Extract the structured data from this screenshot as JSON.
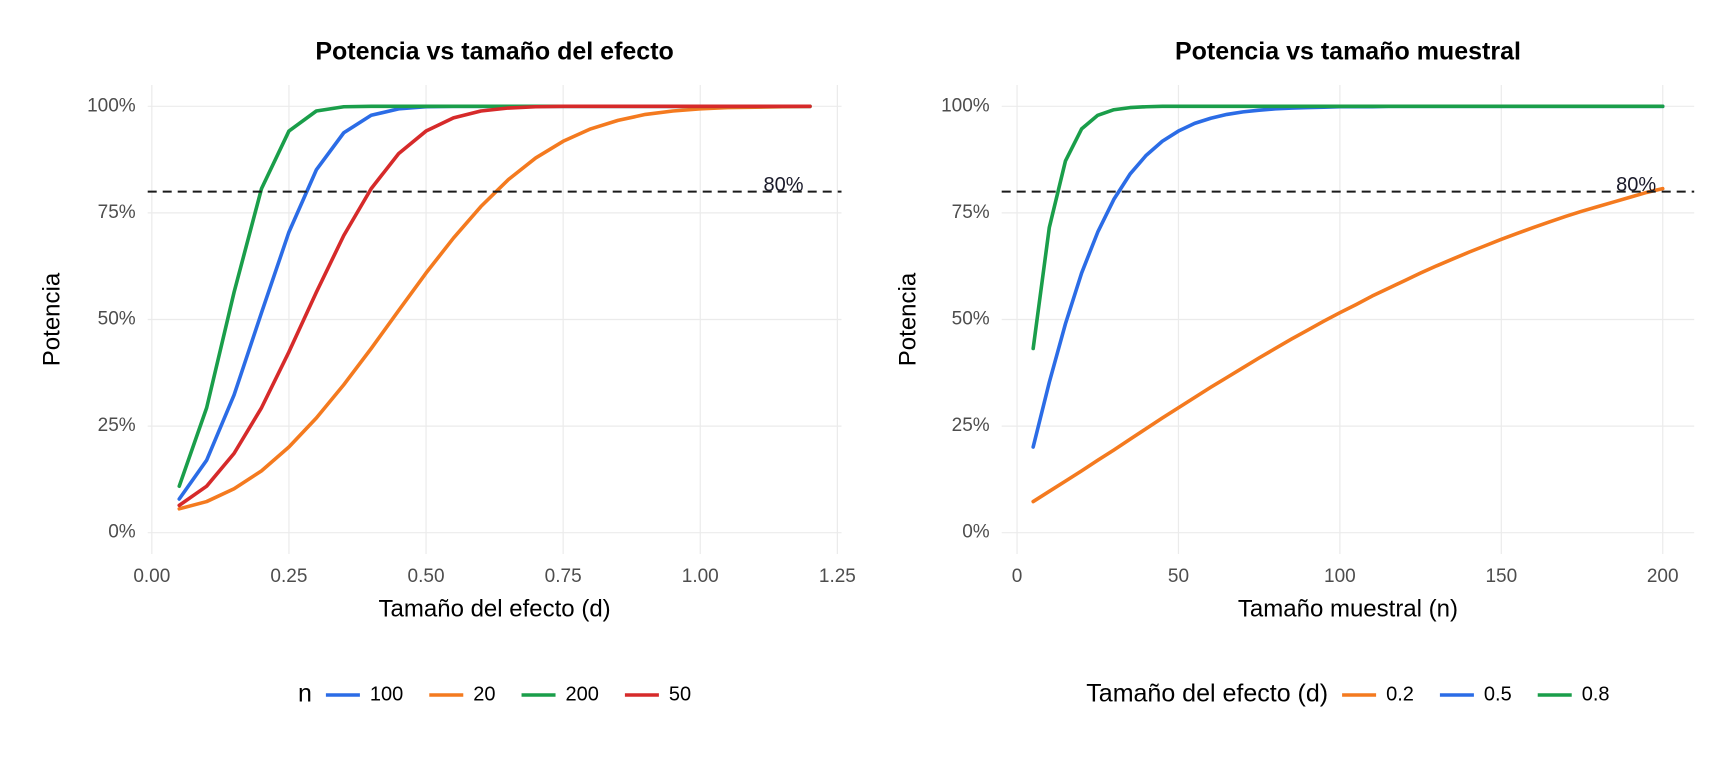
{
  "chart_data": [
    {
      "type": "line",
      "title": "Potencia vs tamaño del efecto",
      "x_label": "Tamaño del efecto (d)",
      "y_label": "Potencia",
      "x": [
        0.05,
        0.1,
        0.15,
        0.2,
        0.25,
        0.3,
        0.35,
        0.4,
        0.45,
        0.5,
        0.55,
        0.6,
        0.65,
        0.7,
        0.75,
        0.8,
        0.85,
        0.9,
        0.95,
        1.0,
        1.05,
        1.1,
        1.15,
        1.2
      ],
      "legend_title": "n",
      "series": [
        {
          "name": "100",
          "color": "#2b6ce6",
          "values": [
            7.9,
            17.0,
            32.3,
            51.6,
            70.5,
            85.1,
            93.8,
            97.9,
            99.4,
            99.9,
            100,
            100,
            100,
            100,
            100,
            100,
            100,
            100,
            100,
            100,
            100,
            100,
            100,
            100
          ]
        },
        {
          "name": "20",
          "color": "#f47a1f",
          "values": [
            5.6,
            7.3,
            10.3,
            14.5,
            20.1,
            26.9,
            34.7,
            43.2,
            52.1,
            60.9,
            69.1,
            76.5,
            82.8,
            87.9,
            91.8,
            94.7,
            96.7,
            98.1,
            98.9,
            99.4,
            99.7,
            99.8,
            99.9,
            100
          ]
        },
        {
          "name": "200",
          "color": "#1a9e4a",
          "values": [
            10.9,
            29.3,
            56.4,
            80.7,
            94.2,
            98.9,
            99.9,
            100,
            100,
            100,
            100,
            100,
            100,
            100,
            100,
            100,
            100,
            100,
            100,
            100,
            100,
            100,
            100,
            100
          ]
        },
        {
          "name": "50",
          "color": "#d62a2a",
          "values": [
            6.4,
            10.9,
            18.6,
            29.3,
            42.4,
            56.4,
            69.7,
            80.7,
            88.9,
            94.2,
            97.3,
            98.9,
            99.6,
            99.9,
            100,
            100,
            100,
            100,
            100,
            100,
            100,
            100,
            100,
            100
          ]
        }
      ],
      "hline": {
        "value": 80,
        "label": "80%"
      },
      "xlim": [
        -0.0075,
        1.2575
      ],
      "xticks": [
        {
          "value": 0,
          "label": "0.00"
        },
        0.25,
        {
          "value": 0.5,
          "label": "0.50"
        },
        0.75,
        {
          "value": 1,
          "label": "1.00"
        },
        1.25
      ],
      "ylim": [
        -5,
        105
      ],
      "yticks": [
        {
          "value": 0,
          "label": "0%"
        },
        {
          "value": 25,
          "label": "25%"
        },
        {
          "value": 50,
          "label": "50%"
        },
        {
          "value": 75,
          "label": "75%"
        },
        {
          "value": 100,
          "label": "100%"
        }
      ],
      "grid": true,
      "legend": "bottom"
    },
    {
      "type": "line",
      "title": "Potencia vs tamaño muestral",
      "x_label": "Tamaño muestral (n)",
      "y_label": "Potencia",
      "x": [
        5,
        10,
        15,
        20,
        25,
        30,
        35,
        40,
        45,
        50,
        55,
        60,
        65,
        70,
        75,
        80,
        85,
        90,
        95,
        100,
        105,
        110,
        115,
        120,
        125,
        130,
        135,
        140,
        145,
        150,
        155,
        160,
        165,
        170,
        175,
        180,
        185,
        190,
        195,
        200
      ],
      "legend_title": "Tamaño del efecto (d)",
      "series": [
        {
          "name": "0.2",
          "color": "#f47a1f",
          "values": [
            7.3,
            9.7,
            12.1,
            14.5,
            17.0,
            19.4,
            21.9,
            24.4,
            26.9,
            29.3,
            31.7,
            34.1,
            36.4,
            38.7,
            41.0,
            43.2,
            45.4,
            47.5,
            49.6,
            51.6,
            53.5,
            55.5,
            57.3,
            59.1,
            60.9,
            62.6,
            64.2,
            65.8,
            67.3,
            68.8,
            70.2,
            71.6,
            72.9,
            74.2,
            75.4,
            76.5,
            77.6,
            78.7,
            79.8,
            80.7
          ]
        },
        {
          "name": "0.5",
          "color": "#2b6ce6",
          "values": [
            20.1,
            35.3,
            49.0,
            60.9,
            70.5,
            78.2,
            84.1,
            88.5,
            91.8,
            94.2,
            96.0,
            97.2,
            98.1,
            98.7,
            99.1,
            99.4,
            99.6,
            99.7,
            99.8,
            99.9,
            99.9,
            99.9,
            100,
            100,
            100,
            100,
            100,
            100,
            100,
            100,
            100,
            100,
            100,
            100,
            100,
            100,
            100,
            100,
            100,
            100
          ]
        },
        {
          "name": "0.8",
          "color": "#1a9e4a",
          "values": [
            43.2,
            71.6,
            87.2,
            94.7,
            97.9,
            99.2,
            99.7,
            99.9,
            100,
            100,
            100,
            100,
            100,
            100,
            100,
            100,
            100,
            100,
            100,
            100,
            100,
            100,
            100,
            100,
            100,
            100,
            100,
            100,
            100,
            100,
            100,
            100,
            100,
            100,
            100,
            100,
            100,
            100,
            100,
            100
          ]
        }
      ],
      "hline": {
        "value": 80,
        "label": "80%"
      },
      "xlim": [
        -4.75,
        209.75
      ],
      "xticks": [
        0,
        50,
        100,
        150,
        200
      ],
      "ylim": [
        -5,
        105
      ],
      "yticks": [
        {
          "value": 0,
          "label": "0%"
        },
        {
          "value": 25,
          "label": "25%"
        },
        {
          "value": 50,
          "label": "50%"
        },
        {
          "value": 75,
          "label": "75%"
        },
        {
          "value": 100,
          "label": "100%"
        }
      ],
      "grid": true,
      "legend": "bottom"
    }
  ]
}
